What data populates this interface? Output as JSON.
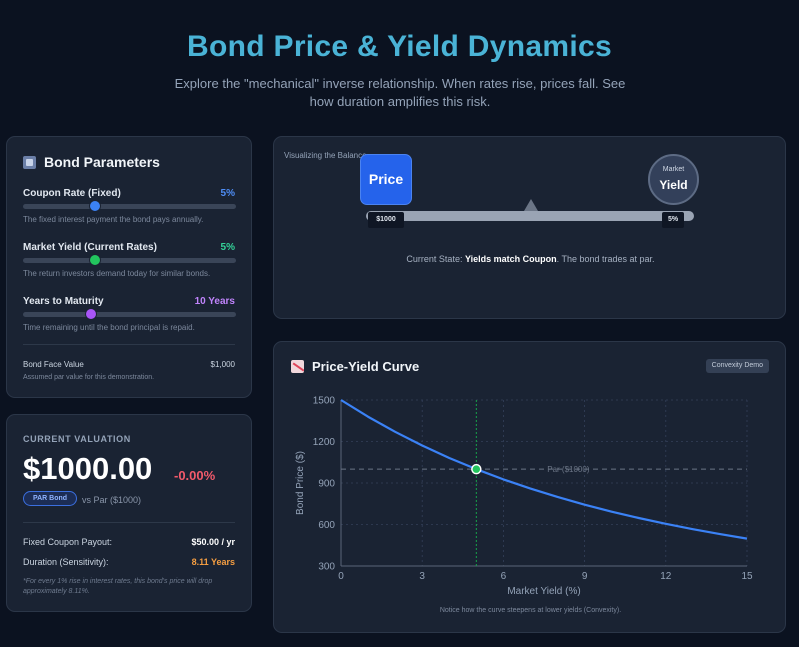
{
  "header": {
    "title": "Bond Price & Yield Dynamics",
    "subtitle": "Explore the \"mechanical\" inverse relationship. When rates rise, prices fall. See how duration amplifies this risk."
  },
  "params": {
    "heading": "Bond Parameters",
    "icon": "grid-icon",
    "coupon": {
      "label": "Coupon Rate (Fixed)",
      "value": "5%",
      "desc": "The fixed interest payment the bond pays annually.",
      "level": 0.34,
      "color": "#3b82f6"
    },
    "yield": {
      "label": "Market Yield (Current Rates)",
      "value": "5%",
      "desc": "The return investors demand today for similar bonds.",
      "level": 0.34,
      "color": "#22c55e"
    },
    "years": {
      "label": "Years to Maturity",
      "value": "10 Years",
      "desc": "Time remaining until the bond principal is repaid.",
      "level": 0.32,
      "color": "#a855f7"
    },
    "face": {
      "label": "Bond Face Value",
      "value": "$1,000",
      "desc": "Assumed par value for this demonstration."
    }
  },
  "valuation": {
    "heading": "CURRENT VALUATION",
    "price": "$1000.00",
    "change": "-0.00%",
    "badge": "PAR Bond",
    "vs": "vs Par ($1000)",
    "coupon_label": "Fixed Coupon Payout:",
    "coupon_value": "$50.00 / yr",
    "duration_label": "Duration (Sensitivity):",
    "duration_value": "8.11 Years",
    "note": "*For every 1% rise in interest rates, this bond's price will drop approximately 8.11%.",
    "colors": {
      "price_change": "#f25a6b",
      "duration": "#f59e42",
      "coupon": "#ffffff"
    }
  },
  "balance": {
    "label": "Visualizing the Balance",
    "price_label": "Price",
    "yield_small": "Market",
    "yield_big": "Yield",
    "left_value": "$1000",
    "right_value": "5%",
    "state_prefix": "Current State:",
    "state_bold": "Yields match Coupon",
    "state_suffix": ". The bond trades at par."
  },
  "curve": {
    "heading": "Price-Yield Curve",
    "icon": "chart-down-icon",
    "badge": "Convexity Demo",
    "note": "Notice how the curve steepens at lower yields (Convexity)."
  },
  "chart_data": {
    "type": "line",
    "title": "Price-Yield Curve",
    "xlabel": "Market Yield (%)",
    "ylabel": "Bond Price ($)",
    "xlim": [
      0,
      15
    ],
    "ylim": [
      300,
      1500
    ],
    "xticks": [
      0,
      3,
      6,
      9,
      12,
      15
    ],
    "yticks": [
      300,
      600,
      900,
      1200,
      1500
    ],
    "grid": true,
    "series": [
      {
        "name": "Bond Price",
        "color": "#3b82f6",
        "x": [
          0,
          1,
          2,
          3,
          4,
          5,
          6,
          7,
          8,
          9,
          10,
          11,
          12,
          13,
          14,
          15
        ],
        "values": [
          1500,
          1379,
          1270,
          1171,
          1081,
          1000,
          926,
          860,
          799,
          743,
          693,
          647,
          605,
          566,
          531,
          498
        ]
      }
    ],
    "reference_line": {
      "label": "Par ($1000)",
      "y": 1000
    },
    "current_point": {
      "x": 5,
      "y": 1000
    }
  }
}
